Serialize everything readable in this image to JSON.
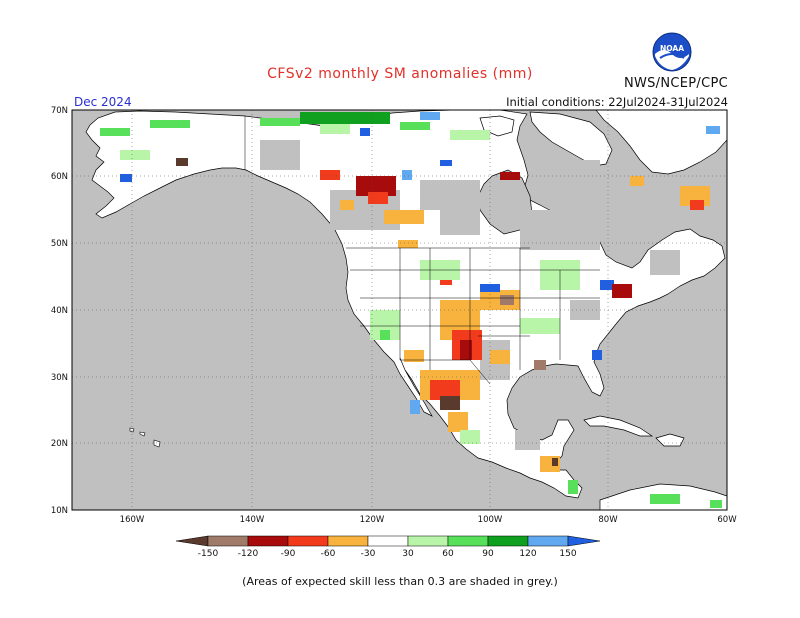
{
  "header": {
    "title": "CFSv2 monthly SM anomalies (mm)",
    "agency": "NWS/NCEP/CPC",
    "month": "Dec 2024",
    "initial_conditions": "Initial conditions: 22Jul2024-31Jul2024"
  },
  "logo": {
    "text": "NOAA",
    "icon": "noaa-logo-icon"
  },
  "axes": {
    "lat_labels": [
      "70N",
      "60N",
      "50N",
      "40N",
      "30N",
      "20N",
      "10N"
    ],
    "lon_labels": [
      "160W",
      "140W",
      "120W",
      "100W",
      "80W",
      "60W"
    ]
  },
  "colorbar": {
    "labels": [
      "-150",
      "-120",
      "-90",
      "-60",
      "-30",
      "30",
      "60",
      "90",
      "120",
      "150"
    ],
    "colors": [
      "#5a3a2c",
      "#a07b6a",
      "#a80b0b",
      "#f23a1c",
      "#f8b23e",
      "#ffffff",
      "#b8f5a8",
      "#58e05a",
      "#10a020",
      "#60a8f0",
      "#2060e0"
    ]
  },
  "colors": {
    "land": "#ffffff",
    "ocean_and_low_skill": "#c0c0c0",
    "coast": "#000000"
  },
  "footnote": "(Areas of expected skill less than 0.3 are shaded in grey.)"
}
